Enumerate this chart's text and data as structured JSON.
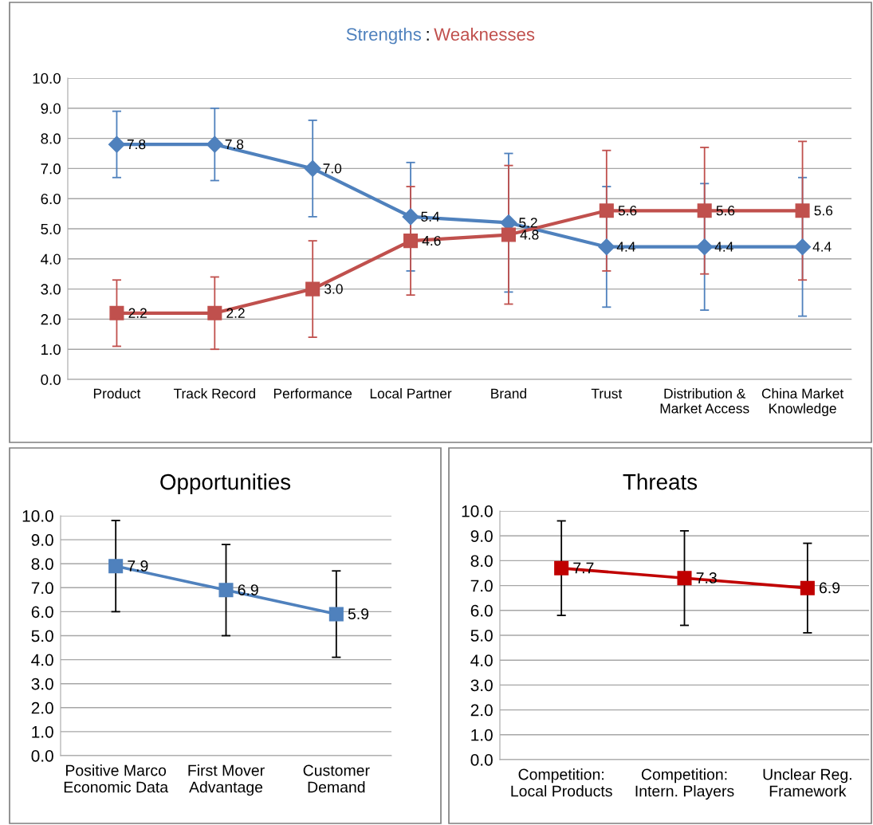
{
  "chart_data": [
    {
      "type": "line",
      "title": "Strengths : Weaknesses",
      "categories": [
        "Product",
        "Track Record",
        "Performance",
        "Local Partner",
        "Brand",
        "Trust",
        "Distribution &\nMarket Access",
        "China Market\nKnowledge"
      ],
      "series": [
        {
          "color": "#4f81bd",
          "marker": "diamond",
          "values": [
            7.8,
            7.8,
            7.0,
            5.4,
            5.2,
            4.4,
            4.4,
            4.4
          ],
          "errors": [
            1.1,
            1.2,
            1.6,
            1.8,
            2.3,
            2.0,
            2.1,
            2.3
          ],
          "value_labels": [
            "7.8",
            "7.8",
            "7.0",
            "5.4",
            "5.2",
            "4.4",
            "4.4",
            "4.4"
          ]
        },
        {
          "color": "#c0504d",
          "marker": "square",
          "values": [
            2.2,
            2.2,
            3.0,
            4.6,
            4.8,
            5.6,
            5.6,
            5.6
          ],
          "errors": [
            1.1,
            1.2,
            1.6,
            1.8,
            2.3,
            2.0,
            2.1,
            2.3
          ],
          "value_labels": [
            "2.2",
            "2.2",
            "3.0",
            "4.6",
            "4.8",
            "5.6",
            "5.6",
            "5.6"
          ]
        }
      ],
      "ylim": [
        0,
        10
      ],
      "yticks": [
        {
          "value": 0,
          "label": "0.0"
        },
        {
          "value": 1,
          "label": "1.0"
        },
        {
          "value": 2,
          "label": "2.0"
        },
        {
          "value": 3,
          "label": "3.0"
        },
        {
          "value": 4,
          "label": "4.0"
        },
        {
          "value": 5,
          "label": "5.0"
        },
        {
          "value": 6,
          "label": "6.0"
        },
        {
          "value": 7,
          "label": "7.0"
        },
        {
          "value": 8,
          "label": "8.0"
        },
        {
          "value": 9,
          "label": "9.0"
        },
        {
          "value": 10,
          "label": "10.0"
        }
      ],
      "grid": "y",
      "line_style": "solid"
    },
    {
      "type": "line",
      "title": "Opportunities",
      "categories": [
        "Positive Marco\nEconomic Data",
        "First Mover\nAdvantage",
        "Customer\nDemand"
      ],
      "series": [
        {
          "color": "#4f81bd",
          "marker": "square",
          "values": [
            7.9,
            6.9,
            5.9
          ],
          "errors": [
            1.9,
            1.9,
            1.8
          ],
          "value_labels": [
            "7.9",
            "6.9",
            "5.9"
          ]
        }
      ],
      "ylim": [
        0,
        10
      ],
      "yticks": [
        {
          "value": 0,
          "label": "0.0"
        },
        {
          "value": 1,
          "label": "1.0"
        },
        {
          "value": 2,
          "label": "2.0"
        },
        {
          "value": 3,
          "label": "3.0"
        },
        {
          "value": 4,
          "label": "4.0"
        },
        {
          "value": 5,
          "label": "5.0"
        },
        {
          "value": 6,
          "label": "6.0"
        },
        {
          "value": 7,
          "label": "7.0"
        },
        {
          "value": 8,
          "label": "8.0"
        },
        {
          "value": 9,
          "label": "9.0"
        },
        {
          "value": 10,
          "label": "10.0"
        }
      ],
      "grid": "y",
      "line_style": "solid"
    },
    {
      "type": "line",
      "title": "Threats",
      "categories": [
        "Competition:\nLocal Products",
        "Competition:\nIntern. Players",
        "Unclear Reg.\nFramework"
      ],
      "series": [
        {
          "color": "#c00000",
          "marker": "square",
          "values": [
            7.7,
            7.3,
            6.9
          ],
          "errors": [
            1.9,
            1.9,
            1.8
          ],
          "value_labels": [
            "7.7",
            "7.3",
            "6.9"
          ]
        }
      ],
      "ylim": [
        0,
        10
      ],
      "yticks": [
        {
          "value": 0,
          "label": "0.0"
        },
        {
          "value": 1,
          "label": "1.0"
        },
        {
          "value": 2,
          "label": "2.0"
        },
        {
          "value": 3,
          "label": "3.0"
        },
        {
          "value": 4,
          "label": "4.0"
        },
        {
          "value": 5,
          "label": "5.0"
        },
        {
          "value": 6,
          "label": "6.0"
        },
        {
          "value": 7,
          "label": "7.0"
        },
        {
          "value": 8,
          "label": "8.0"
        },
        {
          "value": 9,
          "label": "9.0"
        },
        {
          "value": 10,
          "label": "10.0"
        }
      ],
      "grid": "y",
      "line_style": "solid"
    }
  ]
}
